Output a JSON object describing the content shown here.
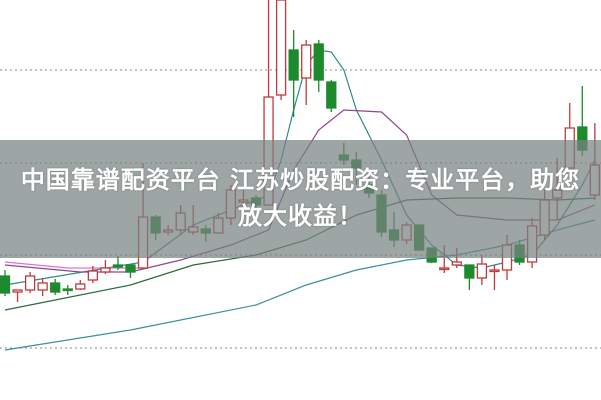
{
  "caption": {
    "line1": "中国靠谱配资平台 江苏炒股配资：专业平台，助您",
    "line2": "放大收益！"
  },
  "chart_data": {
    "type": "candlestick",
    "title": "",
    "xlabel": "",
    "ylabel": "",
    "ylim": [
      0,
      400
    ],
    "grid": "dotted horizontal",
    "gridlines": [
      330,
      237,
      145,
      52
    ],
    "colors": {
      "up": "#c0393b",
      "down": "#1e8a2e",
      "grid": "#888888"
    },
    "candles": [
      [
        124,
        107,
        130,
        104
      ],
      [
        108,
        110,
        110,
        98
      ],
      [
        110,
        124,
        128,
        107
      ],
      [
        110,
        117,
        122,
        104
      ],
      [
        117,
        108,
        121,
        105
      ],
      [
        111,
        110,
        115,
        105
      ],
      [
        111,
        116,
        120,
        110
      ],
      [
        120,
        129,
        134,
        117
      ],
      [
        128,
        132,
        140,
        126
      ],
      [
        135,
        133,
        144,
        130
      ],
      [
        135,
        128,
        136,
        122
      ],
      [
        132,
        183,
        237,
        132
      ],
      [
        183,
        167,
        185,
        160
      ],
      [
        168,
        170,
        175,
        165
      ],
      [
        170,
        187,
        195,
        165
      ],
      [
        168,
        173,
        195,
        165
      ],
      [
        171,
        167,
        175,
        158
      ],
      [
        167,
        182,
        187,
        167
      ],
      [
        182,
        210,
        215,
        175
      ],
      [
        198,
        200,
        210,
        195
      ],
      [
        202,
        195,
        205,
        190
      ],
      [
        195,
        303,
        400,
        195
      ],
      [
        305,
        400,
        410,
        300
      ],
      [
        350,
        320,
        370,
        283
      ],
      [
        322,
        355,
        360,
        295
      ],
      [
        356,
        320,
        360,
        308
      ],
      [
        318,
        292,
        320,
        288
      ],
      [
        245,
        240,
        257,
        235
      ],
      [
        240,
        232,
        248,
        215
      ],
      [
        215,
        207,
        230,
        202
      ],
      [
        205,
        168,
        210,
        163
      ],
      [
        170,
        160,
        188,
        153
      ],
      [
        160,
        175,
        178,
        156
      ],
      [
        175,
        150,
        175,
        150
      ],
      [
        152,
        138,
        152,
        137
      ],
      [
        132,
        132,
        155,
        127
      ],
      [
        135,
        138,
        152,
        132
      ],
      [
        135,
        122,
        135,
        110
      ],
      [
        122,
        136,
        145,
        115
      ],
      [
        130,
        130,
        135,
        110
      ],
      [
        130,
        155,
        165,
        120
      ],
      [
        155,
        138,
        160,
        135
      ],
      [
        138,
        174,
        182,
        132
      ],
      [
        165,
        200,
        210,
        160
      ],
      [
        202,
        210,
        242,
        180
      ],
      [
        232,
        272,
        297,
        232
      ],
      [
        273,
        250,
        314,
        244
      ],
      [
        205,
        235,
        277,
        200
      ]
    ],
    "candle_fields": [
      "open",
      "close",
      "high",
      "low"
    ],
    "lines": [
      {
        "color": "#2f8a8a",
        "points": [
          [
            0,
            115
          ],
          [
            11,
            138
          ],
          [
            15,
            175
          ],
          [
            20,
            200
          ],
          [
            21,
            205
          ],
          [
            22,
            240
          ],
          [
            23,
            290
          ],
          [
            24,
            335
          ],
          [
            25,
            350
          ],
          [
            26,
            348
          ],
          [
            27,
            330
          ],
          [
            28,
            290
          ],
          [
            30,
            240
          ],
          [
            32,
            185
          ],
          [
            34,
            155
          ],
          [
            36,
            135
          ],
          [
            38,
            132
          ],
          [
            40,
            138
          ],
          [
            42,
            145
          ],
          [
            44,
            175
          ],
          [
            46,
            215
          ],
          [
            47,
            240
          ]
        ]
      },
      {
        "color": "#8a4a8a",
        "points": [
          [
            0,
            135
          ],
          [
            6,
            128
          ],
          [
            10,
            128
          ],
          [
            14,
            140
          ],
          [
            18,
            155
          ],
          [
            21,
            170
          ],
          [
            23,
            230
          ],
          [
            25,
            270
          ],
          [
            27,
            290
          ],
          [
            30,
            288
          ],
          [
            32,
            265
          ],
          [
            34,
            205
          ],
          [
            36,
            185
          ],
          [
            40,
            180
          ],
          [
            44,
            180
          ],
          [
            47,
            195
          ]
        ]
      },
      {
        "color": "#e070e0",
        "points": [
          [
            0,
            138
          ],
          [
            5,
            132
          ],
          [
            11,
            132
          ]
        ]
      },
      {
        "color": "#2e6b3a",
        "points": [
          [
            0,
            90
          ],
          [
            10,
            115
          ],
          [
            15,
            135
          ],
          [
            20,
            145
          ],
          [
            24,
            160
          ],
          [
            28,
            185
          ],
          [
            32,
            200
          ],
          [
            36,
            202
          ],
          [
            40,
            202
          ],
          [
            44,
            200
          ],
          [
            47,
            202
          ]
        ]
      },
      {
        "color": "#3a8fa0",
        "points": [
          [
            0,
            50
          ],
          [
            10,
            70
          ],
          [
            20,
            95
          ],
          [
            24,
            115
          ],
          [
            28,
            130
          ],
          [
            32,
            140
          ],
          [
            36,
            145
          ],
          [
            40,
            155
          ],
          [
            44,
            170
          ],
          [
            47,
            180
          ]
        ]
      }
    ]
  }
}
